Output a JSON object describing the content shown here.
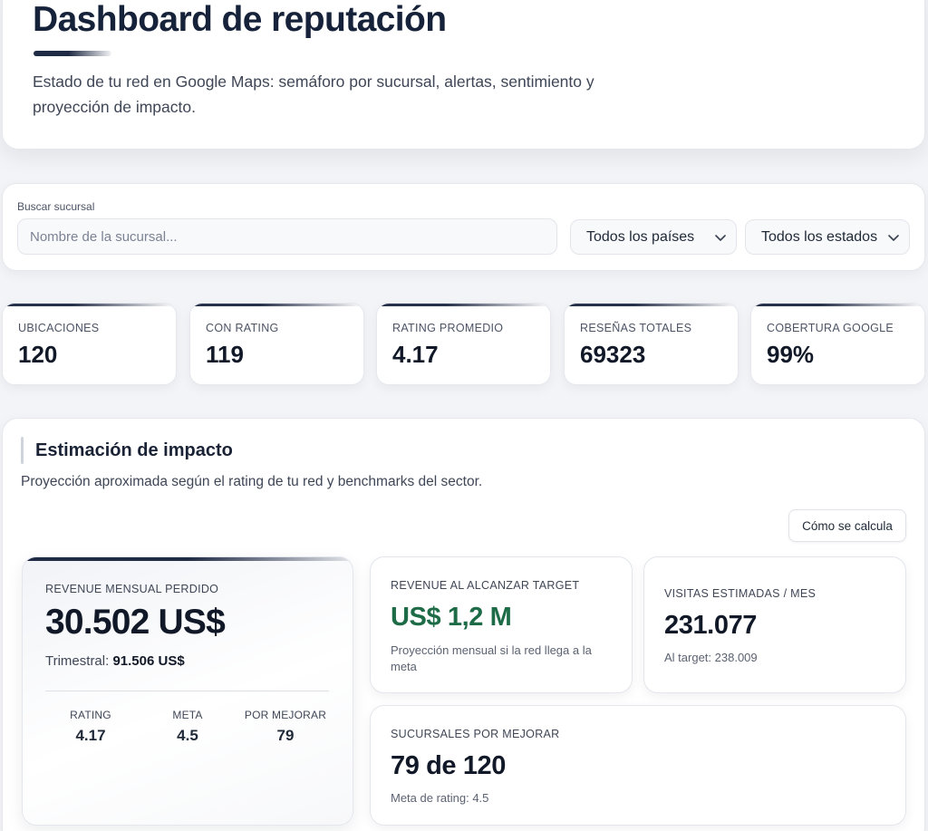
{
  "header": {
    "title": "Dashboard de reputación",
    "subtitle": "Estado de tu red en Google Maps: semáforo por sucursal, alertas, sentimiento y proyección de impacto."
  },
  "filters": {
    "search_label": "Buscar sucursal",
    "search_placeholder": "Nombre de la sucursal...",
    "search_value": "",
    "country_select": "Todos los países",
    "state_select": "Todos los estados"
  },
  "kpis": [
    {
      "label": "UBICACIONES",
      "value": "120"
    },
    {
      "label": "CON RATING",
      "value": "119"
    },
    {
      "label": "RATING PROMEDIO",
      "value": "4.17"
    },
    {
      "label": "RESEÑAS TOTALES",
      "value": "69323"
    },
    {
      "label": "COBERTURA GOOGLE",
      "value": "99%"
    }
  ],
  "impact": {
    "title": "Estimación de impacto",
    "subtitle": "Proyección aproximada según el rating de tu red y benchmarks del sector.",
    "how_button": "Cómo se calcula",
    "lost_revenue": {
      "label": "REVENUE MENSUAL PERDIDO",
      "value": "30.502 US$",
      "quarter_label": "Trimestral:",
      "quarter_value": "91.506 US$",
      "stats": [
        {
          "label": "RATING",
          "value": "4.17"
        },
        {
          "label": "META",
          "value": "4.5"
        },
        {
          "label": "POR MEJORAR",
          "value": "79"
        }
      ]
    },
    "target_revenue": {
      "label": "REVENUE AL ALCANZAR TARGET",
      "value": "US$ 1,2 M",
      "note": "Proyección mensual si la red llega a la meta",
      "accent": "#1d6b47"
    },
    "visits": {
      "label": "VISITAS ESTIMADAS / MES",
      "value": "231.077",
      "note": "Al target: 238.009"
    },
    "branches": {
      "label": "SUCURSALES POR MEJORAR",
      "value": "79 de 120",
      "note": "Meta de rating: 4.5"
    }
  }
}
